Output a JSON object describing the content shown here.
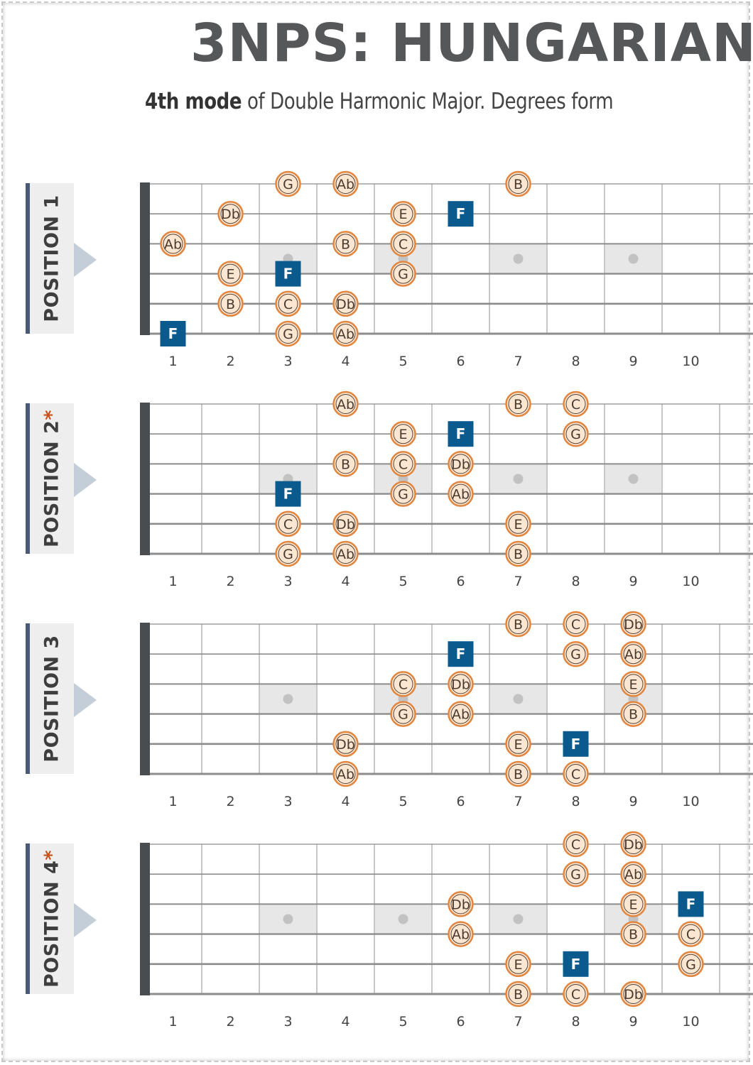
{
  "header": {
    "title": "3NPS: HUNGARIAN",
    "subtitle_bold": "4th mode",
    "subtitle_rest": " of Double Harmonic Major. Degrees form"
  },
  "colors": {
    "note_fill": "#fbe6d2",
    "note_stroke": "#e2863f",
    "root_fill": "#0b5a8e",
    "marker_fill": "#e7e7e7",
    "marker_dot": "#c2c2c2",
    "string_color": "#8c8c8c",
    "fret_color": "#c8c8c8",
    "nut_color": "#4a4d50"
  },
  "fret_numbers": [
    "1",
    "2",
    "3",
    "4",
    "5",
    "6",
    "7",
    "8",
    "9",
    "10"
  ],
  "inlay_frets": [
    3,
    5,
    7,
    9
  ],
  "positions": [
    {
      "label": "POSITION 1",
      "star": "",
      "notes": [
        {
          "s": 1,
          "f": 3,
          "n": "G",
          "root": false
        },
        {
          "s": 1,
          "f": 4,
          "n": "Ab",
          "root": false
        },
        {
          "s": 1,
          "f": 7,
          "n": "B",
          "root": false
        },
        {
          "s": 2,
          "f": 2,
          "n": "Db",
          "root": false
        },
        {
          "s": 2,
          "f": 5,
          "n": "E",
          "root": false
        },
        {
          "s": 2,
          "f": 6,
          "n": "F",
          "root": true
        },
        {
          "s": 3,
          "f": 1,
          "n": "Ab",
          "root": false
        },
        {
          "s": 3,
          "f": 4,
          "n": "B",
          "root": false
        },
        {
          "s": 3,
          "f": 5,
          "n": "C",
          "root": false
        },
        {
          "s": 4,
          "f": 2,
          "n": "E",
          "root": false
        },
        {
          "s": 4,
          "f": 3,
          "n": "F",
          "root": true
        },
        {
          "s": 4,
          "f": 5,
          "n": "G",
          "root": false
        },
        {
          "s": 5,
          "f": 2,
          "n": "B",
          "root": false
        },
        {
          "s": 5,
          "f": 3,
          "n": "C",
          "root": false
        },
        {
          "s": 5,
          "f": 4,
          "n": "Db",
          "root": false
        },
        {
          "s": 6,
          "f": 1,
          "n": "F",
          "root": true
        },
        {
          "s": 6,
          "f": 3,
          "n": "G",
          "root": false
        },
        {
          "s": 6,
          "f": 4,
          "n": "Ab",
          "root": false
        }
      ]
    },
    {
      "label": "POSITION 2",
      "star": "*",
      "notes": [
        {
          "s": 1,
          "f": 4,
          "n": "Ab",
          "root": false
        },
        {
          "s": 1,
          "f": 7,
          "n": "B",
          "root": false
        },
        {
          "s": 1,
          "f": 8,
          "n": "C",
          "root": false
        },
        {
          "s": 2,
          "f": 5,
          "n": "E",
          "root": false
        },
        {
          "s": 2,
          "f": 6,
          "n": "F",
          "root": true
        },
        {
          "s": 2,
          "f": 8,
          "n": "G",
          "root": false
        },
        {
          "s": 3,
          "f": 4,
          "n": "B",
          "root": false
        },
        {
          "s": 3,
          "f": 5,
          "n": "C",
          "root": false
        },
        {
          "s": 3,
          "f": 6,
          "n": "Db",
          "root": false
        },
        {
          "s": 4,
          "f": 3,
          "n": "F",
          "root": true
        },
        {
          "s": 4,
          "f": 5,
          "n": "G",
          "root": false
        },
        {
          "s": 4,
          "f": 6,
          "n": "Ab",
          "root": false
        },
        {
          "s": 5,
          "f": 3,
          "n": "C",
          "root": false
        },
        {
          "s": 5,
          "f": 4,
          "n": "Db",
          "root": false
        },
        {
          "s": 5,
          "f": 7,
          "n": "E",
          "root": false
        },
        {
          "s": 6,
          "f": 3,
          "n": "G",
          "root": false
        },
        {
          "s": 6,
          "f": 4,
          "n": "Ab",
          "root": false
        },
        {
          "s": 6,
          "f": 7,
          "n": "B",
          "root": false
        }
      ]
    },
    {
      "label": "POSITION 3",
      "star": "",
      "notes": [
        {
          "s": 1,
          "f": 7,
          "n": "B",
          "root": false
        },
        {
          "s": 1,
          "f": 8,
          "n": "C",
          "root": false
        },
        {
          "s": 1,
          "f": 9,
          "n": "Db",
          "root": false
        },
        {
          "s": 2,
          "f": 6,
          "n": "F",
          "root": true
        },
        {
          "s": 2,
          "f": 8,
          "n": "G",
          "root": false
        },
        {
          "s": 2,
          "f": 9,
          "n": "Ab",
          "root": false
        },
        {
          "s": 3,
          "f": 5,
          "n": "C",
          "root": false
        },
        {
          "s": 3,
          "f": 6,
          "n": "Db",
          "root": false
        },
        {
          "s": 3,
          "f": 9,
          "n": "E",
          "root": false
        },
        {
          "s": 4,
          "f": 5,
          "n": "G",
          "root": false
        },
        {
          "s": 4,
          "f": 6,
          "n": "Ab",
          "root": false
        },
        {
          "s": 4,
          "f": 9,
          "n": "B",
          "root": false
        },
        {
          "s": 5,
          "f": 4,
          "n": "Db",
          "root": false
        },
        {
          "s": 5,
          "f": 7,
          "n": "E",
          "root": false
        },
        {
          "s": 5,
          "f": 8,
          "n": "F",
          "root": true
        },
        {
          "s": 6,
          "f": 4,
          "n": "Ab",
          "root": false
        },
        {
          "s": 6,
          "f": 7,
          "n": "B",
          "root": false
        },
        {
          "s": 6,
          "f": 8,
          "n": "C",
          "root": false
        }
      ]
    },
    {
      "label": "POSITION 4",
      "star": "*",
      "notes": [
        {
          "s": 1,
          "f": 8,
          "n": "C",
          "root": false
        },
        {
          "s": 1,
          "f": 9,
          "n": "Db",
          "root": false
        },
        {
          "s": 2,
          "f": 8,
          "n": "G",
          "root": false
        },
        {
          "s": 2,
          "f": 9,
          "n": "Ab",
          "root": false
        },
        {
          "s": 3,
          "f": 6,
          "n": "Db",
          "root": false
        },
        {
          "s": 3,
          "f": 9,
          "n": "E",
          "root": false
        },
        {
          "s": 3,
          "f": 10,
          "n": "F",
          "root": true
        },
        {
          "s": 4,
          "f": 6,
          "n": "Ab",
          "root": false
        },
        {
          "s": 4,
          "f": 9,
          "n": "B",
          "root": false
        },
        {
          "s": 4,
          "f": 10,
          "n": "C",
          "root": false
        },
        {
          "s": 5,
          "f": 7,
          "n": "E",
          "root": false
        },
        {
          "s": 5,
          "f": 8,
          "n": "F",
          "root": true
        },
        {
          "s": 5,
          "f": 10,
          "n": "G",
          "root": false
        },
        {
          "s": 6,
          "f": 7,
          "n": "B",
          "root": false
        },
        {
          "s": 6,
          "f": 8,
          "n": "C",
          "root": false
        },
        {
          "s": 6,
          "f": 9,
          "n": "Db",
          "root": false
        }
      ]
    }
  ]
}
